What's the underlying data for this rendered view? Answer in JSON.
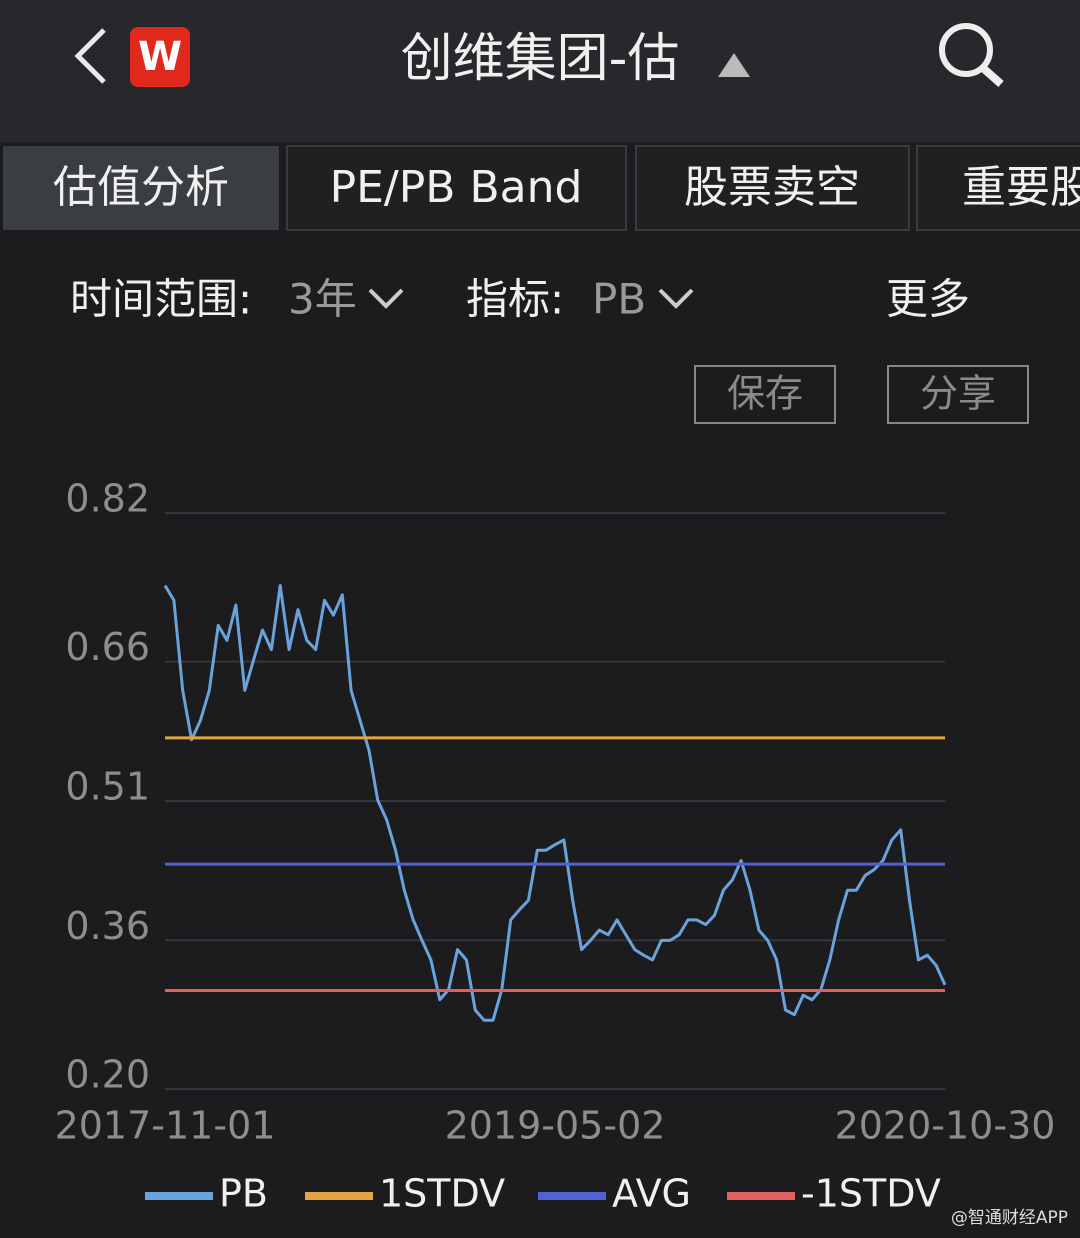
{
  "header": {
    "logo": "W",
    "title": "创维集团-估"
  },
  "tabs": [
    "估值分析",
    "PE/PB Band",
    "股票卖空",
    "重要股"
  ],
  "filters": {
    "range_label": "时间范围:",
    "range_value": "3年",
    "metric_label": "指标:",
    "metric_value": "PB",
    "more": "更多"
  },
  "buttons": [
    "保存",
    "分享"
  ],
  "chart_data": {
    "type": "line",
    "categories": [
      "2017-11-01",
      null,
      null,
      null,
      null,
      null,
      null,
      null,
      null,
      null,
      null,
      null,
      null,
      null,
      null,
      null,
      null,
      null,
      null,
      null,
      null,
      null,
      null,
      null,
      null,
      null,
      null,
      null,
      null,
      null,
      null,
      null,
      null,
      null,
      null,
      null,
      null,
      null,
      null,
      null,
      null,
      null,
      null,
      null,
      "2019-05-02",
      null,
      null,
      null,
      null,
      null,
      null,
      null,
      null,
      null,
      null,
      null,
      null,
      null,
      null,
      null,
      null,
      null,
      null,
      null,
      null,
      null,
      null,
      null,
      null,
      null,
      null,
      null,
      null,
      null,
      null,
      null,
      null,
      null,
      null,
      null,
      null,
      null,
      null,
      null,
      null,
      null,
      null,
      null,
      "2020-10-30"
    ],
    "series": [
      {
        "name": "PB",
        "color": "#6aa2dc",
        "values": [
          0.742,
          0.726,
          0.629,
          0.576,
          0.597,
          0.629,
          0.699,
          0.683,
          0.721,
          0.629,
          0.662,
          0.694,
          0.673,
          0.742,
          0.673,
          0.716,
          0.683,
          0.673,
          0.726,
          0.71,
          0.732,
          0.629,
          0.597,
          0.565,
          0.511,
          0.49,
          0.457,
          0.414,
          0.382,
          0.36,
          0.339,
          0.296,
          0.307,
          0.35,
          0.339,
          0.285,
          0.274,
          0.274,
          0.307,
          0.382,
          0.393,
          0.403,
          0.457,
          0.457,
          0.463,
          0.468,
          0.403,
          0.35,
          0.36,
          0.371,
          0.366,
          0.382,
          0.366,
          0.35,
          0.344,
          0.339,
          0.36,
          0.36,
          0.366,
          0.382,
          0.382,
          0.377,
          0.387,
          0.414,
          0.425,
          0.446,
          0.414,
          0.371,
          0.36,
          0.339,
          0.285,
          0.28,
          0.301,
          0.296,
          0.307,
          0.339,
          0.382,
          0.414,
          0.414,
          0.43,
          0.436,
          0.446,
          0.468,
          0.479,
          0.403,
          0.339,
          0.344,
          0.333,
          0.312
        ]
      },
      {
        "name": "1STDV",
        "color": "#e2a443",
        "value": 0.578
      },
      {
        "name": "AVG",
        "color": "#4f63d6",
        "value": 0.442
      },
      {
        "name": "-1STDV",
        "color": "#e0605e",
        "value": 0.306
      }
    ],
    "ylim": [
      0.2,
      0.82
    ],
    "yticks": [
      {
        "value": 0.2,
        "label": "0.20"
      },
      0.36,
      0.51,
      0.66,
      0.82
    ],
    "grid": true
  },
  "watermark": "@智通财经APP"
}
